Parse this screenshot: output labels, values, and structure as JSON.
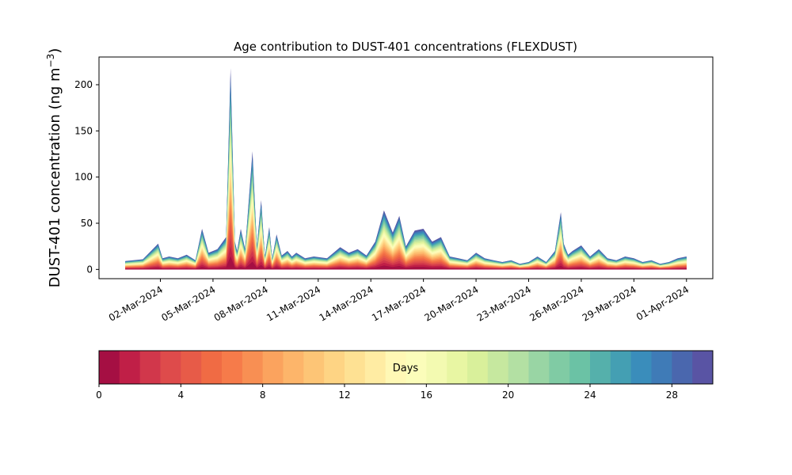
{
  "chart_data": {
    "type": "area",
    "title": "Age contribution to DUST-401 concentrations (FLEXDUST)",
    "ylabel": "DUST-401 concentration (ng m",
    "ylabel_sup": "−3",
    "ylabel_close": ")",
    "xlabel": "",
    "ylim": [
      -10,
      230
    ],
    "yticks": [
      0,
      50,
      100,
      150,
      200
    ],
    "xlim": [
      "2024-02-27T12:00",
      "2024-04-02T12:00"
    ],
    "xticks": [
      "2024-03-02",
      "2024-03-05",
      "2024-03-08",
      "2024-03-11",
      "2024-03-14",
      "2024-03-17",
      "2024-03-20",
      "2024-03-23",
      "2024-03-26",
      "2024-03-29",
      "2024-04-01"
    ],
    "xtick_labels": [
      "02-Mar-2024",
      "05-Mar-2024",
      "08-Mar-2024",
      "11-Mar-2024",
      "14-Mar-2024",
      "17-Mar-2024",
      "20-Mar-2024",
      "23-Mar-2024",
      "26-Mar-2024",
      "29-Mar-2024",
      "01-Apr-2024"
    ],
    "grid": false,
    "stacked": true,
    "layers": 30,
    "total": {
      "x": [
        "2024-02-29T00:00",
        "2024-03-01T00:00",
        "2024-03-01T21:00",
        "2024-03-02T03:00",
        "2024-03-02T12:00",
        "2024-03-03T00:00",
        "2024-03-03T12:00",
        "2024-03-04T00:00",
        "2024-03-04T09:00",
        "2024-03-04T18:00",
        "2024-03-05T06:00",
        "2024-03-05T18:00",
        "2024-03-06T00:00",
        "2024-03-06T06:00",
        "2024-03-06T09:00",
        "2024-03-06T14:00",
        "2024-03-06T20:00",
        "2024-03-07T06:00",
        "2024-03-07T12:00",
        "2024-03-07T18:00",
        "2024-03-07T23:00",
        "2024-03-08T05:00",
        "2024-03-08T09:00",
        "2024-03-08T15:00",
        "2024-03-08T22:00",
        "2024-03-09T06:00",
        "2024-03-09T12:00",
        "2024-03-09T18:00",
        "2024-03-10T06:00",
        "2024-03-10T18:00",
        "2024-03-11T12:00",
        "2024-03-12T06:00",
        "2024-03-12T18:00",
        "2024-03-13T06:00",
        "2024-03-13T18:00",
        "2024-03-14T06:00",
        "2024-03-14T18:00",
        "2024-03-15T06:00",
        "2024-03-15T15:00",
        "2024-03-16T00:00",
        "2024-03-16T12:00",
        "2024-03-17T00:00",
        "2024-03-17T12:00",
        "2024-03-18T00:00",
        "2024-03-18T12:00",
        "2024-03-19T00:00",
        "2024-03-19T12:00",
        "2024-03-20T00:00",
        "2024-03-20T12:00",
        "2024-03-21T00:00",
        "2024-03-21T12:00",
        "2024-03-22T00:00",
        "2024-03-22T12:00",
        "2024-03-23T00:00",
        "2024-03-23T12:00",
        "2024-03-24T00:00",
        "2024-03-24T12:00",
        "2024-03-24T20:00",
        "2024-03-25T00:00",
        "2024-03-25T06:00",
        "2024-03-25T12:00",
        "2024-03-26T00:00",
        "2024-03-26T12:00",
        "2024-03-27T00:00",
        "2024-03-27T12:00",
        "2024-03-28T00:00",
        "2024-03-28T12:00",
        "2024-03-29T00:00",
        "2024-03-29T12:00",
        "2024-03-30T00:00",
        "2024-03-30T12:00",
        "2024-03-31T00:00",
        "2024-03-31T12:00",
        "2024-04-01T00:00"
      ],
      "y": [
        9,
        11,
        28,
        12,
        14,
        12,
        16,
        10,
        44,
        18,
        22,
        35,
        218,
        30,
        20,
        44,
        22,
        128,
        25,
        75,
        14,
        46,
        12,
        38,
        15,
        20,
        14,
        18,
        12,
        14,
        12,
        24,
        18,
        22,
        15,
        30,
        64,
        40,
        58,
        25,
        42,
        44,
        30,
        35,
        14,
        12,
        10,
        18,
        12,
        10,
        8,
        10,
        6,
        8,
        14,
        8,
        20,
        62,
        28,
        16,
        20,
        26,
        14,
        22,
        12,
        10,
        14,
        12,
        8,
        10,
        6,
        8,
        12,
        14
      ]
    },
    "colorbar": {
      "label": "Days",
      "ticks": [
        0,
        4,
        8,
        12,
        16,
        20,
        24,
        28
      ],
      "range": [
        0,
        30
      ],
      "colors": [
        "#a50f43",
        "#c01f47",
        "#d1374b",
        "#de4b4b",
        "#e75b48",
        "#f06b44",
        "#f67b4a",
        "#f88f53",
        "#fba35e",
        "#fdb56a",
        "#fdc576",
        "#fed484",
        "#fee193",
        "#ffeca3",
        "#fff8b5",
        "#fbfdba",
        "#f3fab1",
        "#e8f6a3",
        "#d9f09b",
        "#c6e89f",
        "#b3e0a3",
        "#99d5a4",
        "#80cba4",
        "#6bc2a5",
        "#55b0ab",
        "#449fb3",
        "#3a8dbb",
        "#3f7bb7",
        "#4a67ae",
        "#5954a4"
      ]
    }
  }
}
